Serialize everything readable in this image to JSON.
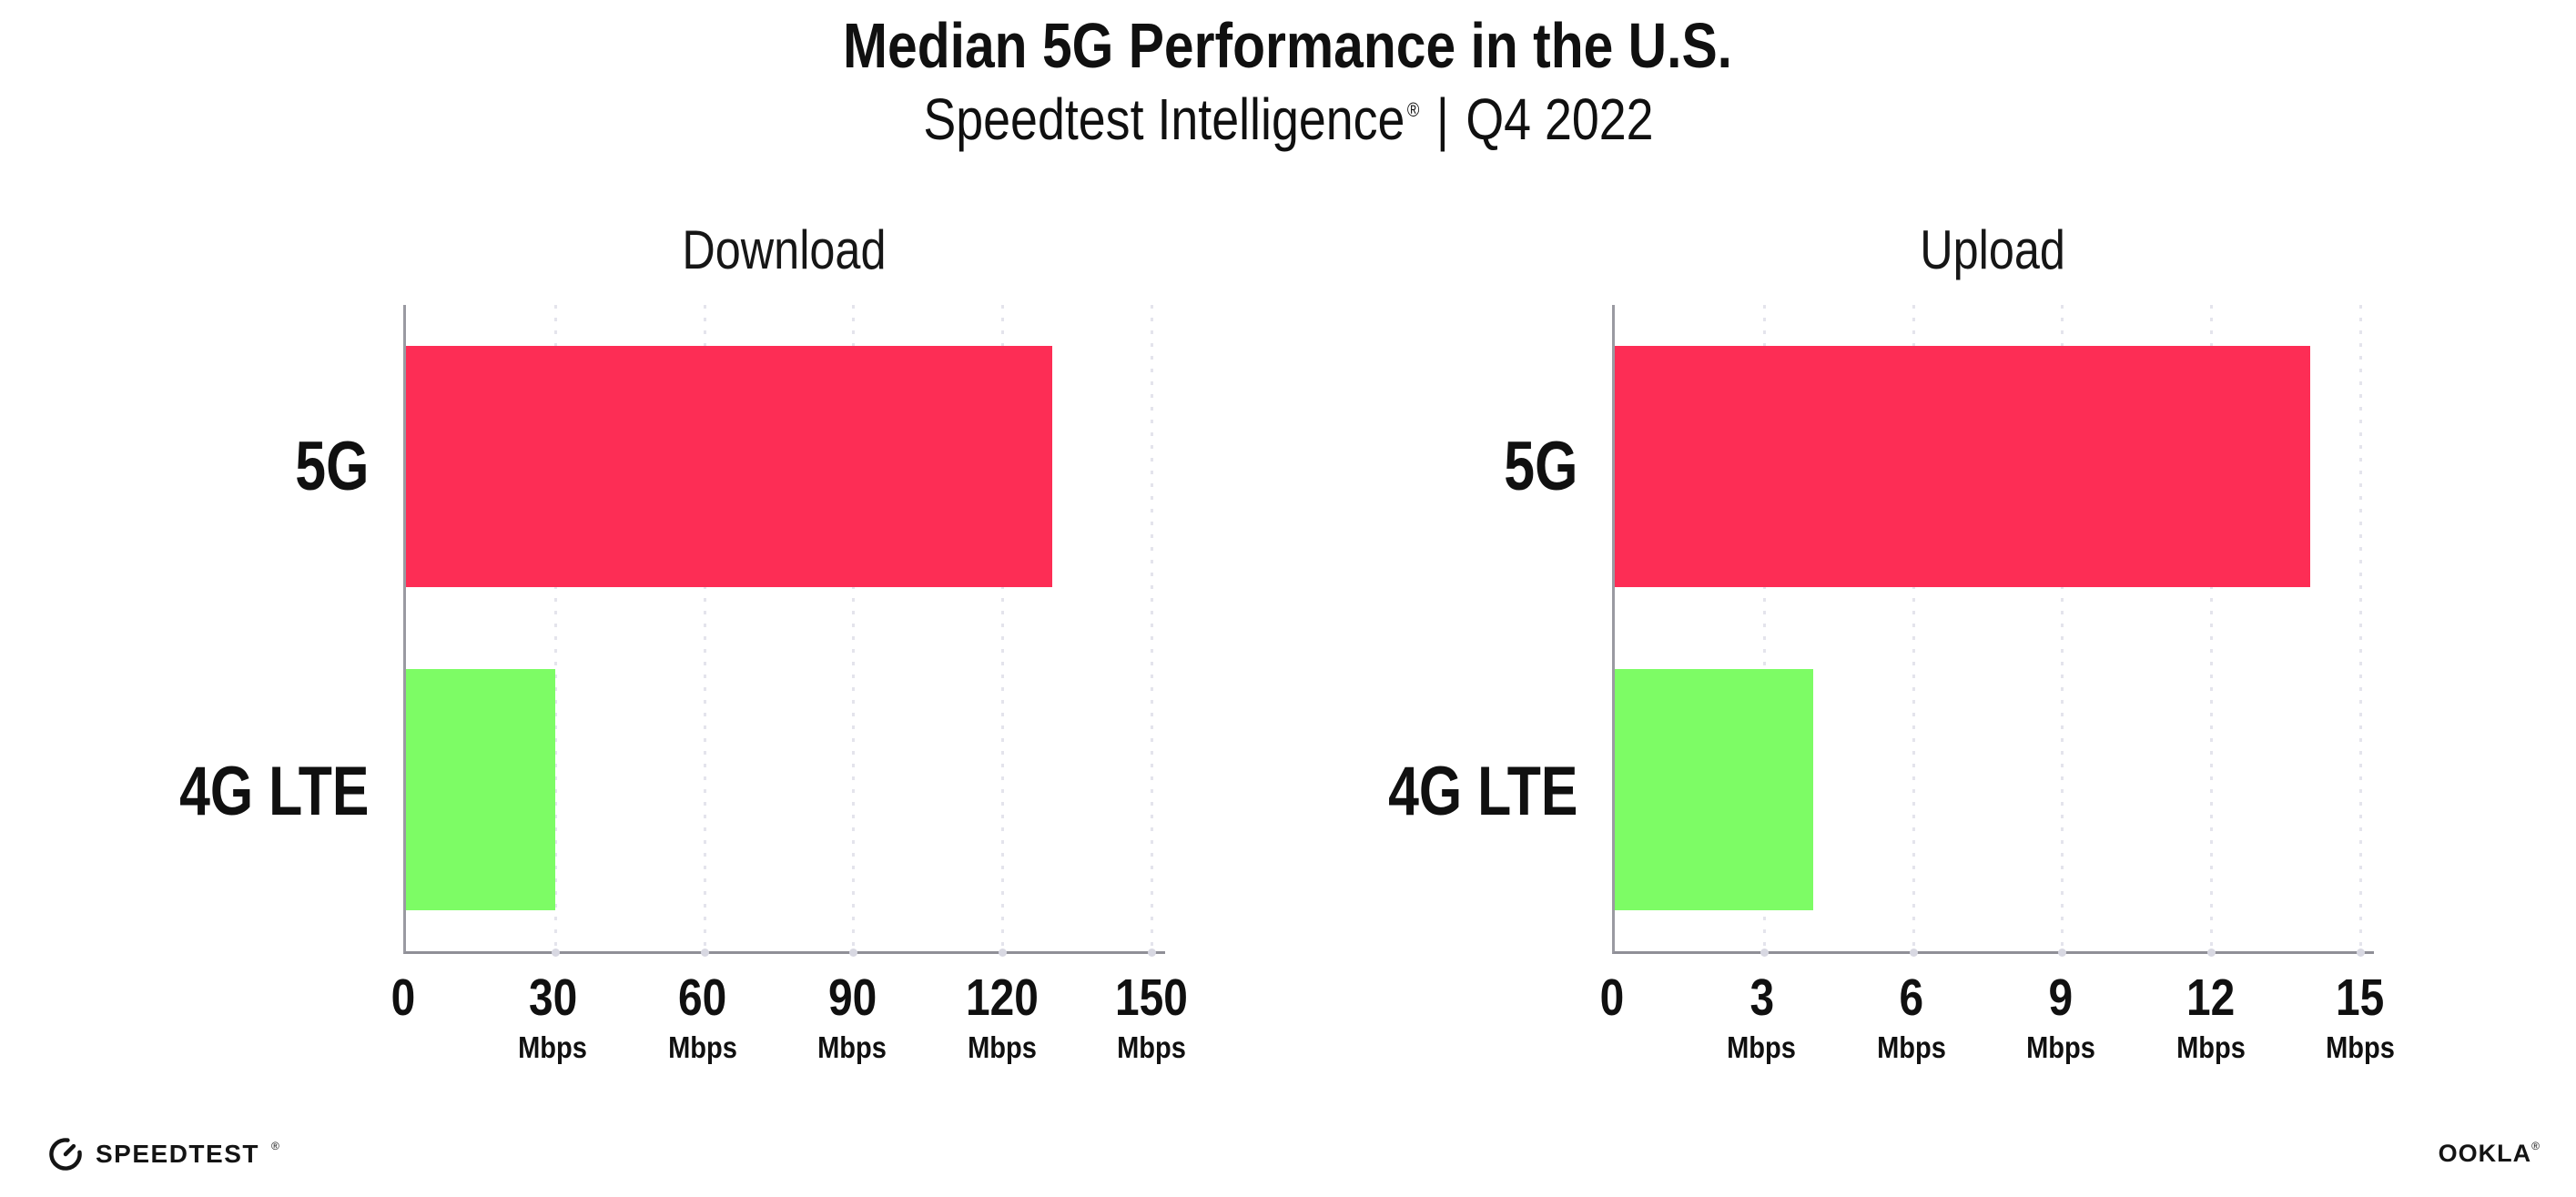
{
  "header": {
    "title": "Median 5G Performance in the U.S.",
    "subtitle_brand": "Speedtest Intelligence",
    "subtitle_mark": "®",
    "subtitle_separator": "|",
    "subtitle_period": "Q4 2022"
  },
  "colors": {
    "bar_5g": "#FD2D55",
    "bar_4g_lte": "#7DFC65",
    "gridline": "#E4E4EC",
    "axis": "#92929A",
    "text": "#101010"
  },
  "chart_data": [
    {
      "type": "bar",
      "orientation": "horizontal",
      "title": "Download",
      "categories": [
        "5G",
        "4G LTE"
      ],
      "values": [
        130,
        30
      ],
      "unit": "Mbps",
      "xlabel": "",
      "ylabel": "",
      "xlim": [
        0,
        150
      ],
      "xticks": [
        0,
        30,
        60,
        90,
        120,
        150
      ],
      "tick_unit_label": "Mbps",
      "grid": "vertical-dotted",
      "legend": "none",
      "bar_colors": [
        "#FD2D55",
        "#7DFC65"
      ]
    },
    {
      "type": "bar",
      "orientation": "horizontal",
      "title": "Upload",
      "categories": [
        "5G",
        "4G LTE"
      ],
      "values": [
        14,
        4
      ],
      "unit": "Mbps",
      "xlabel": "",
      "ylabel": "",
      "xlim": [
        0,
        15
      ],
      "xticks": [
        0,
        3,
        6,
        9,
        12,
        15
      ],
      "tick_unit_label": "Mbps",
      "grid": "vertical-dotted",
      "legend": "none",
      "bar_colors": [
        "#FD2D55",
        "#7DFC65"
      ]
    }
  ],
  "footer": {
    "speedtest_label": "SPEEDTEST",
    "speedtest_mark": "®",
    "ookla_label": "OOKLA",
    "ookla_mark": "®"
  }
}
